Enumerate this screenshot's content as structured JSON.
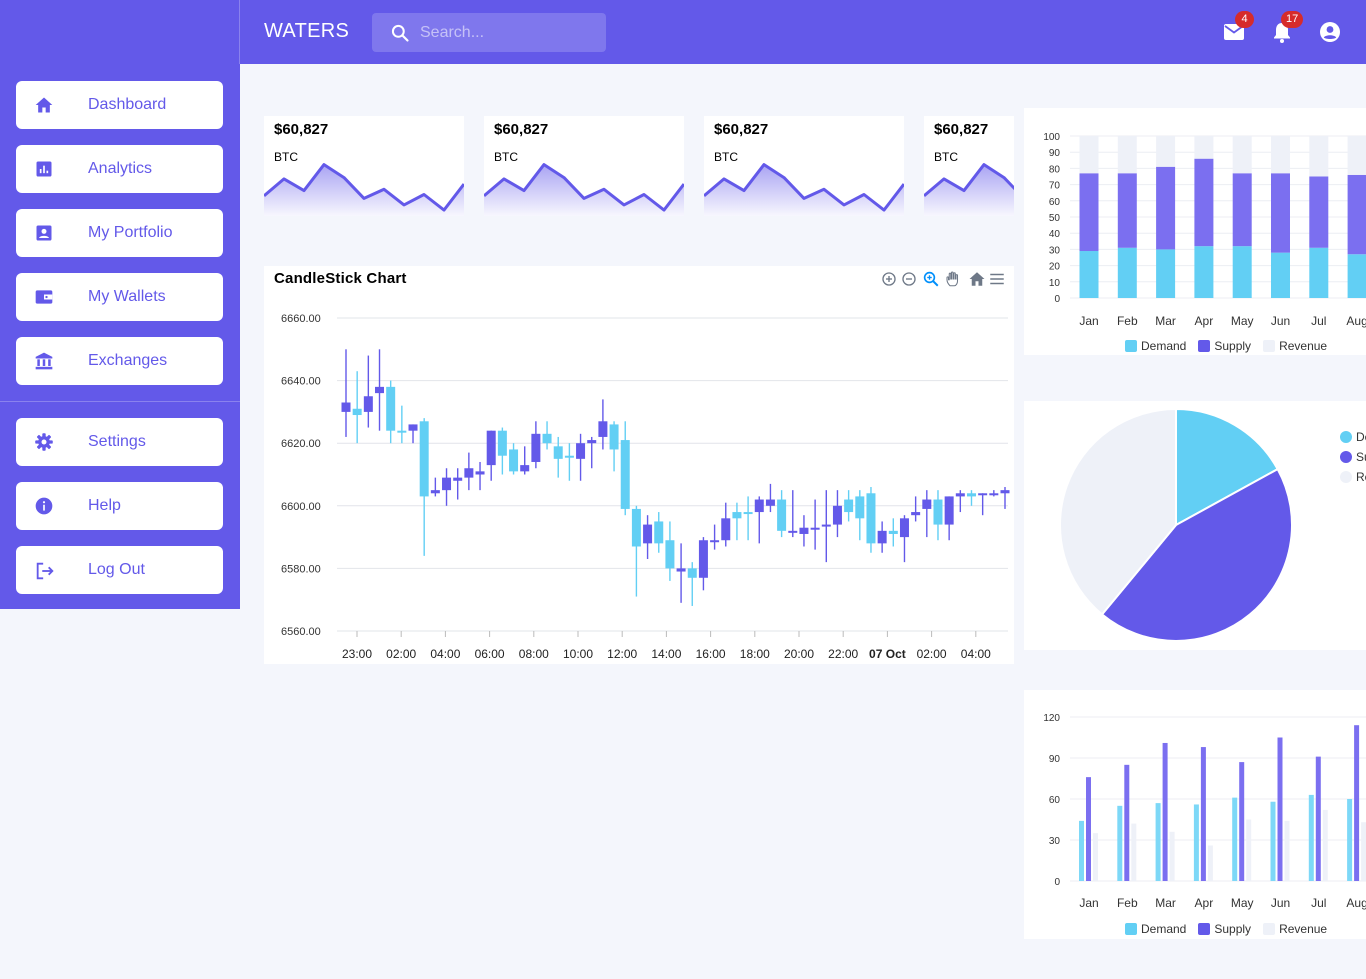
{
  "app": {
    "title": "WATERS"
  },
  "search": {
    "placeholder": "Search..."
  },
  "notifications": {
    "mail_count": "4",
    "bell_count": "17"
  },
  "sidebar": {
    "items": [
      {
        "label": "Dashboard",
        "icon": "home-icon"
      },
      {
        "label": "Analytics",
        "icon": "analytics-icon"
      },
      {
        "label": "My Portfolio",
        "icon": "portfolio-icon"
      },
      {
        "label": "My Wallets",
        "icon": "wallet-icon"
      },
      {
        "label": "Exchanges",
        "icon": "bank-icon"
      }
    ],
    "bottom_items": [
      {
        "label": "Settings",
        "icon": "gear-icon"
      },
      {
        "label": "Help",
        "icon": "info-icon"
      },
      {
        "label": "Log Out",
        "icon": "logout-icon"
      }
    ]
  },
  "cards": [
    {
      "price": "$60,827",
      "ticker": "BTC"
    },
    {
      "price": "$60,827",
      "ticker": "BTC"
    },
    {
      "price": "$60,827",
      "ticker": "BTC"
    },
    {
      "price": "$60,827",
      "ticker": "BTC"
    }
  ],
  "colors": {
    "primary": "#6359e9",
    "cyan": "#62cff4",
    "light": "#eef1f8",
    "badge": "#d62b2b"
  },
  "chart_data": [
    {
      "type": "line",
      "sparkline": true,
      "values": [
        14,
        27,
        18,
        38,
        28,
        12,
        19,
        7,
        15,
        3,
        23
      ]
    },
    {
      "type": "candlestick",
      "title": "CandleStick Chart",
      "ylim": [
        6560,
        6660
      ],
      "yticks": [
        "6660.00",
        "6640.00",
        "6620.00",
        "6600.00",
        "6580.00",
        "6560.00"
      ],
      "xticks": [
        "23:00",
        "02:00",
        "04:00",
        "06:00",
        "08:00",
        "10:00",
        "12:00",
        "14:00",
        "16:00",
        "18:00",
        "20:00",
        "22:00",
        "07 Oct",
        "02:00",
        "04:00"
      ],
      "up_color": "#62cff4",
      "down_color": "#6359e9",
      "candles": [
        [
          6633,
          6650,
          6622,
          6630,
          "d"
        ],
        [
          6631,
          6643,
          6620,
          6629,
          "u"
        ],
        [
          6630,
          6648,
          6625,
          6635,
          "d"
        ],
        [
          6638,
          6650,
          6624,
          6636,
          "d"
        ],
        [
          6638,
          6640,
          6620,
          6624,
          "u"
        ],
        [
          6624,
          6632,
          6620,
          6624,
          "u"
        ],
        [
          6624,
          6626,
          6620,
          6626,
          "d"
        ],
        [
          6627,
          6628,
          6584,
          6603,
          "u"
        ],
        [
          6604,
          6609,
          6603,
          6605,
          "d"
        ],
        [
          6605,
          6612,
          6600,
          6609,
          "d"
        ],
        [
          6608,
          6612,
          6602,
          6609,
          "d"
        ],
        [
          6609,
          6617,
          6605,
          6612,
          "d"
        ],
        [
          6610,
          6614,
          6605,
          6611,
          "d"
        ],
        [
          6613,
          6624,
          6608,
          6624,
          "d"
        ],
        [
          6624,
          6625,
          6610,
          6616,
          "u"
        ],
        [
          6618,
          6620,
          6610,
          6611,
          "u"
        ],
        [
          6611,
          6619,
          6610,
          6613,
          "d"
        ],
        [
          6614,
          6627,
          6612,
          6623,
          "d"
        ],
        [
          6623,
          6627,
          6618,
          6620,
          "u"
        ],
        [
          6619,
          6622,
          6609,
          6615,
          "u"
        ],
        [
          6616,
          6620,
          6608,
          6616,
          "u"
        ],
        [
          6615,
          6623,
          6608,
          6620,
          "d"
        ],
        [
          6620,
          6622,
          6612,
          6621,
          "d"
        ],
        [
          6622,
          6634,
          6618,
          6627,
          "d"
        ],
        [
          6626,
          6627,
          6611,
          6618,
          "u"
        ],
        [
          6621,
          6627,
          6597,
          6599,
          "u"
        ],
        [
          6599,
          6600,
          6571,
          6587,
          "u"
        ],
        [
          6588,
          6597,
          6583,
          6594,
          "d"
        ],
        [
          6595,
          6598,
          6585,
          6588,
          "u"
        ],
        [
          6589,
          6595,
          6576,
          6580,
          "u"
        ],
        [
          6580,
          6588,
          6569,
          6579,
          "d"
        ],
        [
          6580,
          6582,
          6568,
          6577,
          "u"
        ],
        [
          6577,
          6590,
          6573,
          6589,
          "d"
        ],
        [
          6589,
          6594,
          6586,
          6589,
          "d"
        ],
        [
          6589,
          6601,
          6587,
          6596,
          "d"
        ],
        [
          6596,
          6601,
          6589,
          6598,
          "u"
        ],
        [
          6598,
          6603,
          6589,
          6598,
          "u"
        ],
        [
          6598,
          6603,
          6588,
          6602,
          "d"
        ],
        [
          6602,
          6607,
          6598,
          6600,
          "d"
        ],
        [
          6602,
          6605,
          6590,
          6592,
          "u"
        ],
        [
          6592,
          6605,
          6590,
          6592,
          "d"
        ],
        [
          6591,
          6597,
          6587,
          6593,
          "d"
        ],
        [
          6593,
          6602,
          6586,
          6593,
          "d"
        ],
        [
          6594,
          6605,
          6582,
          6594,
          "d"
        ],
        [
          6594,
          6605,
          6590,
          6600,
          "d"
        ],
        [
          6602,
          6605,
          6595,
          6598,
          "u"
        ],
        [
          6603,
          6605,
          6589,
          6596,
          "u"
        ],
        [
          6604,
          6606,
          6585,
          6588,
          "u"
        ],
        [
          6592,
          6595,
          6585,
          6588,
          "d"
        ],
        [
          6592,
          6596,
          6587,
          6591,
          "u"
        ],
        [
          6590,
          6597,
          6582,
          6596,
          "d"
        ],
        [
          6597,
          6603,
          6595,
          6598,
          "d"
        ],
        [
          6599,
          6605,
          6590,
          6602,
          "d"
        ],
        [
          6602,
          6605,
          6589,
          6594,
          "u"
        ],
        [
          6594,
          6603,
          6589,
          6603,
          "d"
        ],
        [
          6603,
          6605,
          6598,
          6604,
          "d"
        ],
        [
          6604,
          6605,
          6600,
          6603,
          "u"
        ],
        [
          6604,
          6604,
          6597,
          6604,
          "d"
        ],
        [
          6604,
          6605,
          6603,
          6604,
          "d"
        ],
        [
          6605,
          6606,
          6599,
          6604,
          "d"
        ]
      ]
    },
    {
      "type": "bar",
      "stacked": true,
      "categories": [
        "Jan",
        "Feb",
        "Mar",
        "Apr",
        "May",
        "Jun",
        "Jul",
        "Aug"
      ],
      "ylim": [
        0,
        100
      ],
      "yticks": [
        0,
        10,
        20,
        30,
        40,
        50,
        60,
        70,
        80,
        90,
        100
      ],
      "series": [
        {
          "name": "Demand",
          "color": "#62cff4",
          "values": [
            29,
            31,
            30,
            32,
            32,
            28,
            31,
            27
          ]
        },
        {
          "name": "Supply",
          "color": "#7b6ff0",
          "values": [
            48,
            46,
            51,
            54,
            45,
            49,
            44,
            49
          ]
        },
        {
          "name": "Revenue",
          "color": "#eef1f8",
          "values": [
            23,
            23,
            19,
            14,
            23,
            23,
            25,
            24
          ]
        }
      ]
    },
    {
      "type": "pie",
      "series": [
        {
          "name": "Demand",
          "color": "#62cff4",
          "value": 17
        },
        {
          "name": "Supply",
          "color": "#6359e9",
          "value": 44
        },
        {
          "name": "Revenue",
          "color": "#eef1f8",
          "value": 39
        }
      ],
      "legend_labels": [
        "De",
        "Su",
        "Re"
      ]
    },
    {
      "type": "bar",
      "stacked": false,
      "categories": [
        "Jan",
        "Feb",
        "Mar",
        "Apr",
        "May",
        "Jun",
        "Jul",
        "Aug"
      ],
      "ylim": [
        0,
        120
      ],
      "yticks": [
        0,
        30,
        60,
        90,
        120
      ],
      "series": [
        {
          "name": "Demand",
          "color": "#7dd8f7",
          "values": [
            44,
            55,
            57,
            56,
            61,
            58,
            63,
            60
          ]
        },
        {
          "name": "Supply",
          "color": "#7b6ff0",
          "values": [
            76,
            85,
            101,
            98,
            87,
            105,
            91,
            114
          ]
        },
        {
          "name": "Revenue",
          "color": "#eef1f8",
          "values": [
            35,
            42,
            36,
            26,
            45,
            44,
            52,
            43
          ]
        }
      ]
    }
  ]
}
